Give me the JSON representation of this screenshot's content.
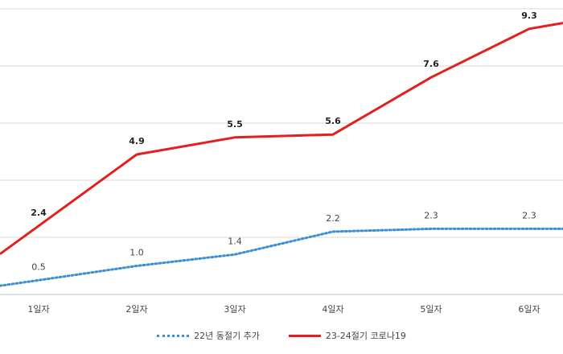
{
  "chart_data": {
    "type": "line",
    "categories": [
      "1일자",
      "2일자",
      "3일자",
      "4일자",
      "5일자",
      "6일자"
    ],
    "series": [
      {
        "name": "22년 동절기 추가",
        "color": "#3a8fd6",
        "style": "dotted",
        "values": [
          0.5,
          1.0,
          1.4,
          2.2,
          2.3,
          2.3
        ],
        "labels": [
          "0.5",
          "1.0",
          "1.4",
          "2.2",
          "2.3",
          "2.3"
        ]
      },
      {
        "name": "23-24절기 코로나19",
        "color": "#e41f1f",
        "style": "solid",
        "values": [
          2.4,
          4.9,
          5.5,
          5.6,
          7.6,
          9.3
        ],
        "labels": [
          "2.4",
          "4.9",
          "5.5",
          "5.6",
          "7.6",
          "9.3"
        ]
      }
    ],
    "ylim": [
      0,
      12
    ],
    "grid": true,
    "legend": "bottom"
  }
}
